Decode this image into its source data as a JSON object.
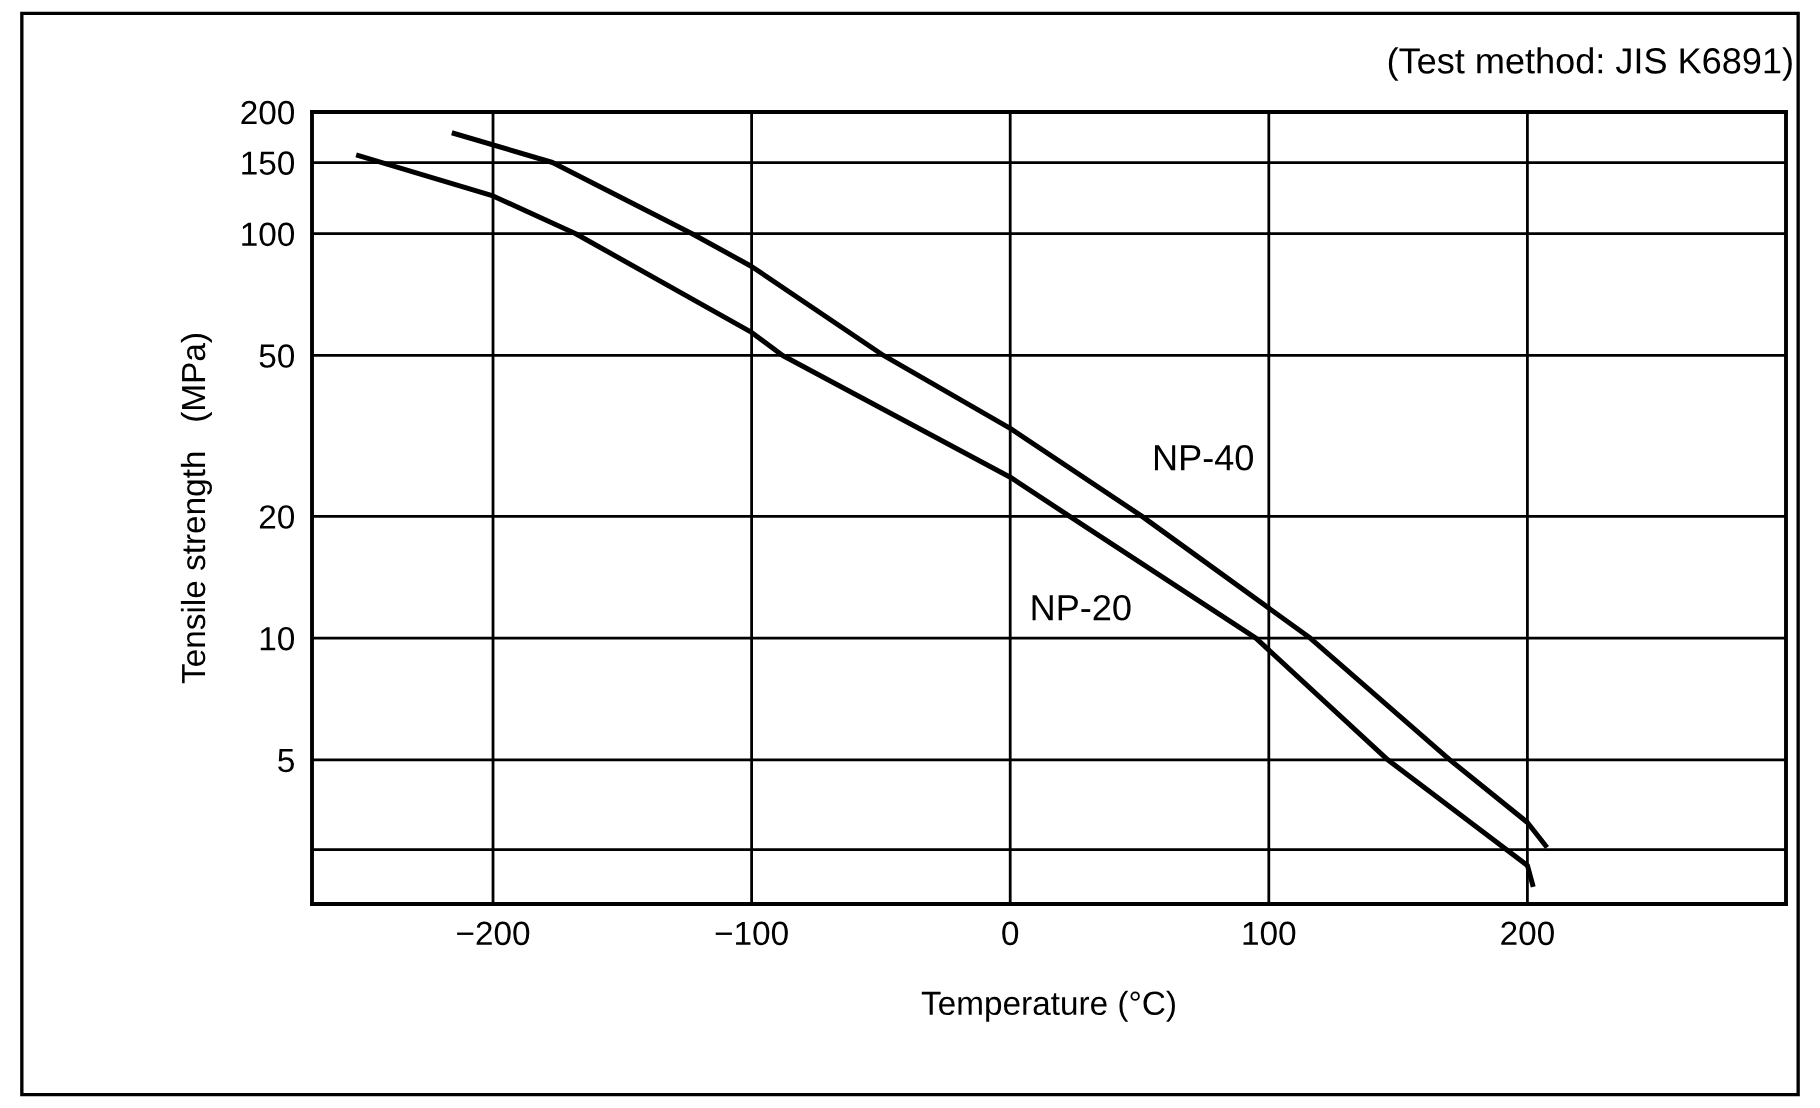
{
  "chart_data": {
    "type": "line",
    "xlabel": "Temperature (°C)",
    "ylabel": "Tensile strength   (MPa)",
    "annotations": [
      "(Test method: JIS K6891)"
    ],
    "log": "y",
    "grid": true,
    "marker": "none",
    "line_style": "solid",
    "xlim": [
      -270,
      300
    ],
    "ylim": [
      2.2,
      200
    ],
    "xticks": [
      {
        "value": -200,
        "label": "−200"
      },
      {
        "value": -100,
        "label": "−100"
      },
      0,
      100,
      200
    ],
    "yticks": [
      {
        "value": 3,
        "label": null
      },
      5,
      10,
      20,
      50,
      100,
      150,
      200
    ],
    "series": [
      {
        "name": "NP-40",
        "color": "#000000",
        "x": [
          -215,
          -177,
          -123,
          -100,
          -49,
          0,
          51,
          116,
          170,
          200,
          207
        ],
        "values": [
          177,
          150,
          100,
          83,
          50,
          33,
          20,
          10,
          5,
          3.5,
          3.07
        ]
      },
      {
        "name": "NP-20",
        "color": "#000000",
        "x": [
          -252,
          -200,
          -168,
          -100,
          -88,
          0,
          23,
          95,
          146,
          200,
          202
        ],
        "values": [
          156,
          124,
          100,
          57,
          50,
          25,
          20,
          10,
          5,
          2.74,
          2.46
        ]
      }
    ]
  }
}
